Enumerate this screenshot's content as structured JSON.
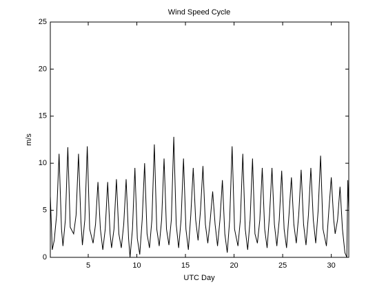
{
  "chart_data": {
    "type": "line",
    "title": "Wind Speed Cycle",
    "x_label": "UTC Day",
    "y_label": "m/s",
    "x": [
      1.1,
      1.3,
      1.5,
      1.75,
      2.0,
      2.25,
      2.4,
      2.65,
      2.9,
      3.15,
      3.5,
      3.75,
      4.0,
      4.25,
      4.4,
      4.65,
      4.9,
      5.15,
      5.5,
      5.75,
      6.0,
      6.25,
      6.5,
      6.75,
      7.0,
      7.25,
      7.4,
      7.65,
      7.9,
      8.15,
      8.4,
      8.65,
      8.9,
      9.15,
      9.3,
      9.55,
      9.8,
      10.05,
      10.3,
      10.55,
      10.8,
      11.05,
      11.3,
      11.55,
      11.8,
      12.05,
      12.3,
      12.55,
      12.8,
      13.05,
      13.3,
      13.55,
      13.8,
      14.05,
      14.3,
      14.55,
      14.8,
      15.05,
      15.3,
      15.55,
      15.8,
      16.05,
      16.3,
      16.55,
      16.8,
      17.05,
      17.3,
      17.55,
      17.8,
      18.05,
      18.3,
      18.55,
      18.8,
      19.05,
      19.3,
      19.55,
      19.8,
      20.05,
      20.4,
      20.65,
      20.9,
      21.15,
      21.4,
      21.65,
      21.9,
      22.15,
      22.4,
      22.65,
      22.9,
      23.15,
      23.4,
      23.65,
      23.9,
      24.15,
      24.4,
      24.65,
      24.9,
      25.15,
      25.4,
      25.65,
      25.9,
      26.15,
      26.4,
      26.65,
      26.9,
      27.15,
      27.4,
      27.65,
      27.9,
      28.15,
      28.4,
      28.65,
      28.9,
      29.15,
      29.5,
      29.75,
      30.0,
      30.25,
      30.4,
      30.65,
      30.9,
      31.15,
      31.4,
      31.6,
      31.7,
      31.8
    ],
    "series": [
      {
        "name": "Wind Speed",
        "color": "#000000",
        "values": [
          6.5,
          0.8,
          1.8,
          4.5,
          11,
          3,
          1.2,
          4,
          11.7,
          3.2,
          2.5,
          4.5,
          11,
          3.8,
          1.3,
          4,
          11.8,
          3,
          1.5,
          3.5,
          8,
          3,
          0.8,
          3,
          8,
          2.5,
          1,
          3,
          8.3,
          2.5,
          1,
          3.5,
          8.3,
          2,
          0,
          3,
          9.5,
          2,
          0.3,
          4,
          10,
          2.5,
          1,
          4,
          12,
          3,
          1.2,
          4,
          10.5,
          3,
          1.3,
          4,
          12.8,
          3.5,
          1,
          4,
          10.5,
          3,
          0.8,
          4.5,
          9.5,
          4,
          1.8,
          5,
          9.7,
          3.5,
          1.5,
          4,
          7,
          3.5,
          1.2,
          4,
          8.2,
          2.5,
          0.5,
          4,
          11.8,
          3,
          1.2,
          4,
          11,
          3,
          0.8,
          4,
          10.5,
          2.5,
          1.5,
          4,
          9.5,
          3,
          1,
          4.5,
          9.5,
          3.5,
          1.2,
          4,
          9.2,
          3,
          1,
          4.5,
          8.5,
          3.5,
          1.5,
          4.5,
          9.3,
          3.5,
          1.3,
          4.5,
          9.5,
          4,
          1.5,
          5,
          10.8,
          3,
          1.2,
          5,
          8.5,
          4,
          2.5,
          4,
          7.5,
          3,
          0.5,
          0,
          8.2,
          5
        ]
      }
    ],
    "xlim": [
      1.1,
      31.8
    ],
    "xticks": [
      5,
      10,
      15,
      20,
      25,
      30
    ],
    "ylim": [
      0,
      25
    ],
    "yticks": [
      0,
      5,
      10,
      15,
      20,
      25
    ]
  }
}
